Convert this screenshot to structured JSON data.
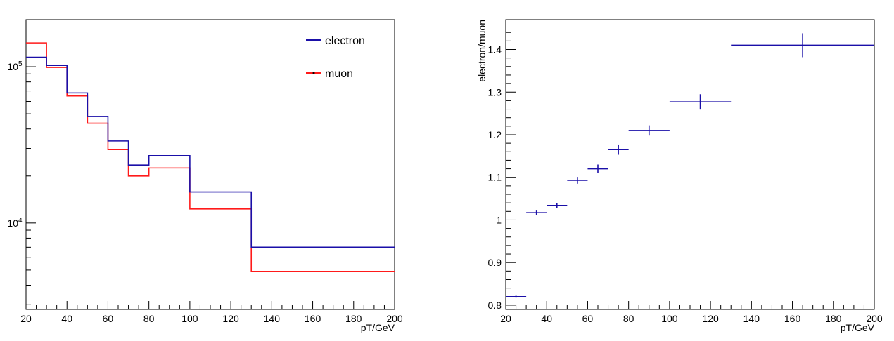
{
  "chart_data": [
    {
      "type": "line",
      "step": true,
      "xlabel": "pT/GeV",
      "ylabel": "",
      "xlim": [
        20,
        200
      ],
      "ylim": [
        2800,
        200000
      ],
      "yscale": "log",
      "xticks": [
        "20",
        "40",
        "60",
        "80",
        "100",
        "120",
        "140",
        "160",
        "180",
        "200"
      ],
      "yticks": [
        {
          "value": 10000,
          "base": "10",
          "exp": "4"
        },
        {
          "value": 100000,
          "base": "10",
          "exp": "5"
        }
      ],
      "bin_edges": [
        20,
        30,
        40,
        50,
        60,
        70,
        80,
        100,
        130,
        200
      ],
      "legend_position": "top-right",
      "series": [
        {
          "name": "electron",
          "color": "#1a0fa8",
          "values": [
            115000,
            102000,
            68000,
            48000,
            33500,
            23500,
            27000,
            15800,
            7000
          ]
        },
        {
          "name": "muon",
          "color": "#ff1a1a",
          "values": [
            142000,
            99000,
            65000,
            43500,
            29500,
            20000,
            22500,
            12300,
            4900
          ]
        }
      ]
    },
    {
      "type": "scatter",
      "errorbars": true,
      "xlabel": "pT/GeV",
      "ylabel": "electron/muon",
      "xlim": [
        20,
        200
      ],
      "ylim": [
        0.79,
        1.47
      ],
      "xticks": [
        "20",
        "40",
        "60",
        "80",
        "100",
        "120",
        "140",
        "160",
        "180",
        "200"
      ],
      "yticks": [
        "0.8",
        "0.9",
        "1",
        "1.1",
        "1.2",
        "1.3",
        "1.4"
      ],
      "color": "#1a0fa8",
      "points": [
        {
          "x": 25,
          "xerr": 5,
          "y": 0.82,
          "yerr": 0.002
        },
        {
          "x": 35,
          "xerr": 5,
          "y": 1.017,
          "yerr": 0.005
        },
        {
          "x": 45,
          "xerr": 5,
          "y": 1.034,
          "yerr": 0.006
        },
        {
          "x": 55,
          "xerr": 5,
          "y": 1.093,
          "yerr": 0.008
        },
        {
          "x": 65,
          "xerr": 5,
          "y": 1.12,
          "yerr": 0.01
        },
        {
          "x": 75,
          "xerr": 5,
          "y": 1.165,
          "yerr": 0.012
        },
        {
          "x": 90,
          "xerr": 10,
          "y": 1.21,
          "yerr": 0.012
        },
        {
          "x": 115,
          "xerr": 15,
          "y": 1.277,
          "yerr": 0.018
        },
        {
          "x": 165,
          "xerr": 35,
          "y": 1.41,
          "yerr": 0.028
        }
      ]
    }
  ]
}
